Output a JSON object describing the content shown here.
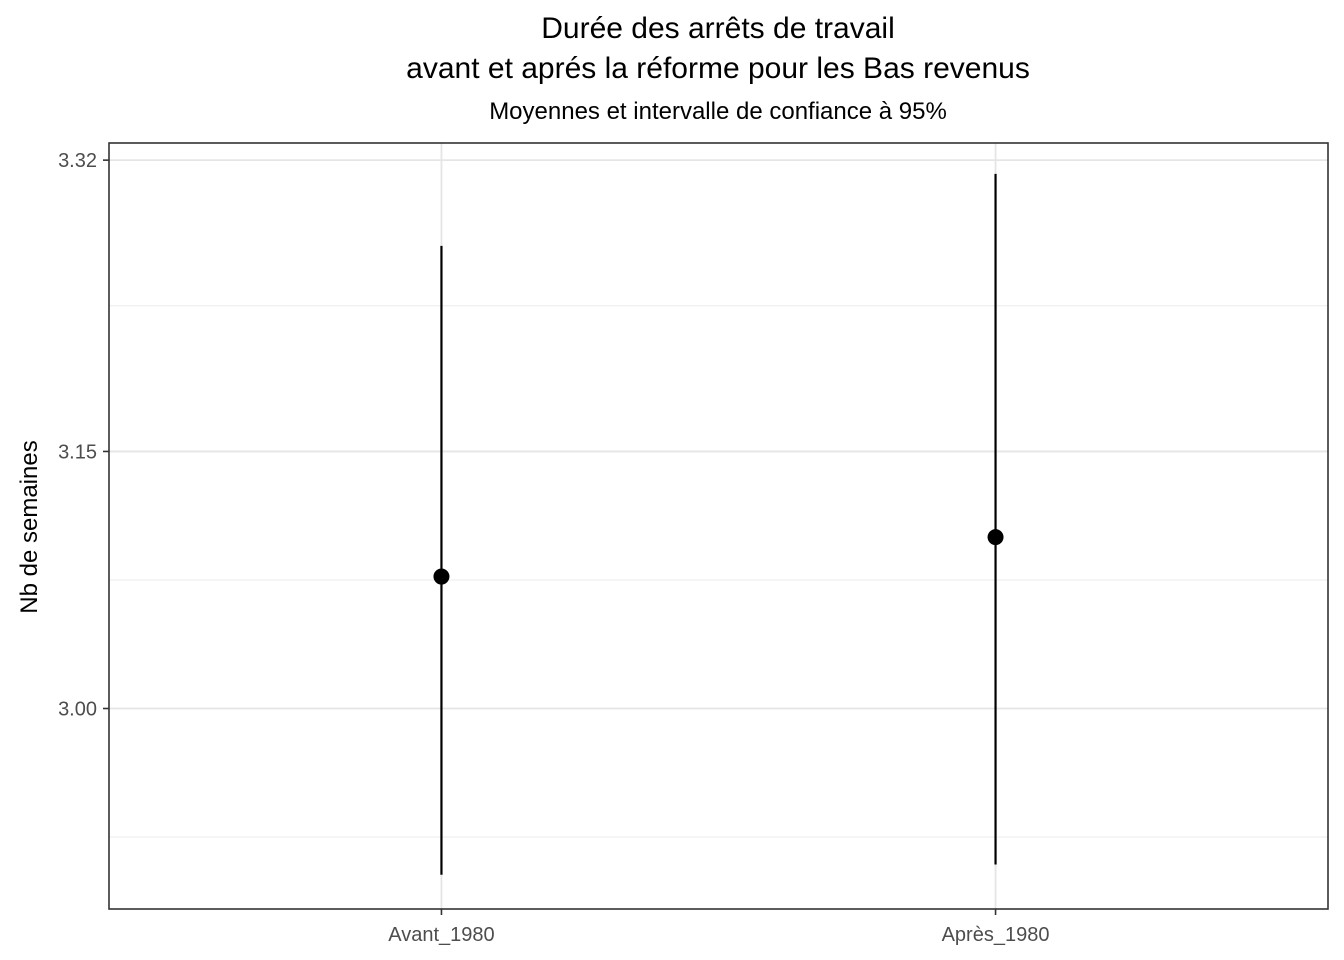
{
  "chart_data": {
    "type": "scatter",
    "title": [
      "Durée des arrêts de travail",
      "avant et aprés la réforme pour les Bas revenus"
    ],
    "subtitle": "Moyennes et intervalle de confiance à 95%",
    "xlabel": "",
    "ylabel": "Nb de semaines",
    "categories": [
      "Avant_1980",
      "Après_1980"
    ],
    "means": [
      3.077,
      3.1
    ],
    "ci_lower": [
      2.903,
      2.909
    ],
    "ci_upper": [
      3.27,
      3.312
    ],
    "yticks": [
      "3.00",
      "3.15",
      "3.32"
    ],
    "ylim": [
      2.883,
      3.33
    ],
    "grid": true,
    "legend": "none"
  }
}
